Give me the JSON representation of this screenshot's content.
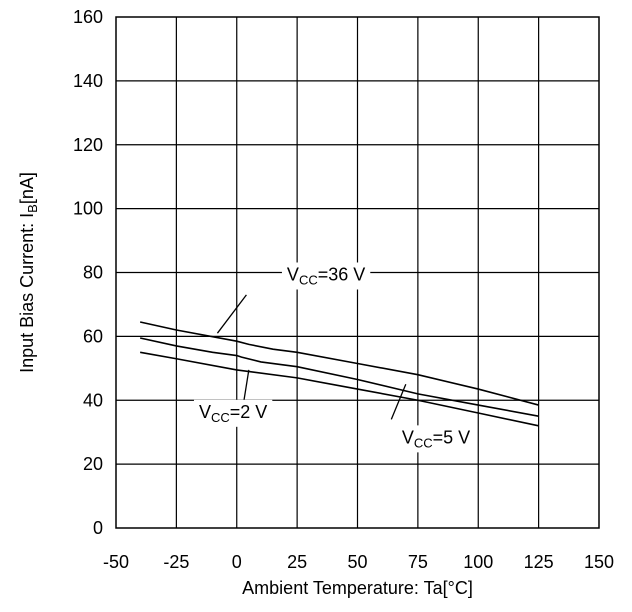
{
  "chart_data": {
    "type": "line",
    "xlabel": "Ambient Temperature: Ta[°C]",
    "ylabel": {
      "main": "Input Bias Current: I",
      "sub": "B",
      "unit": "[nA]"
    },
    "xlim": [
      -50,
      150
    ],
    "ylim": [
      0,
      160
    ],
    "xticks": [
      -50,
      -25,
      0,
      25,
      50,
      75,
      100,
      125,
      150
    ],
    "yticks": [
      0,
      20,
      40,
      60,
      80,
      100,
      120,
      140,
      160
    ],
    "grid": true,
    "series": [
      {
        "x": [
          -40,
          -25,
          0,
          5,
          15,
          25,
          50,
          75,
          100,
          125
        ],
        "y": [
          64.5,
          62,
          58.5,
          57.5,
          56,
          55,
          51.5,
          48,
          43.5,
          38.5
        ]
      },
      {
        "x": [
          -40,
          -25,
          -10,
          0,
          2,
          10,
          25,
          50,
          75,
          100,
          125
        ],
        "y": [
          59.5,
          57,
          55,
          54,
          53.5,
          52,
          50.5,
          46.5,
          42,
          38.5,
          35
        ]
      },
      {
        "x": [
          -40,
          -25,
          0,
          25,
          50,
          75,
          100,
          125
        ],
        "y": [
          55,
          53,
          49.5,
          47,
          43.5,
          40,
          36,
          32
        ]
      }
    ],
    "annotations": [
      {
        "pre": "V",
        "sub": "CC",
        "post": "=36 V",
        "x": 37,
        "y": 77.5,
        "leader": [
          [
            4,
            73
          ],
          [
            -8,
            61
          ]
        ]
      },
      {
        "pre": "V",
        "sub": "CC",
        "post": "=2 V",
        "x": -1.5,
        "y": 34.5,
        "leader": [
          [
            3,
            40
          ],
          [
            5,
            49.5
          ]
        ]
      },
      {
        "pre": "V",
        "sub": "CC",
        "post": "=5 V",
        "x": 82.5,
        "y": 26.5,
        "leader": [
          [
            64,
            34
          ],
          [
            70,
            45
          ]
        ]
      }
    ]
  }
}
